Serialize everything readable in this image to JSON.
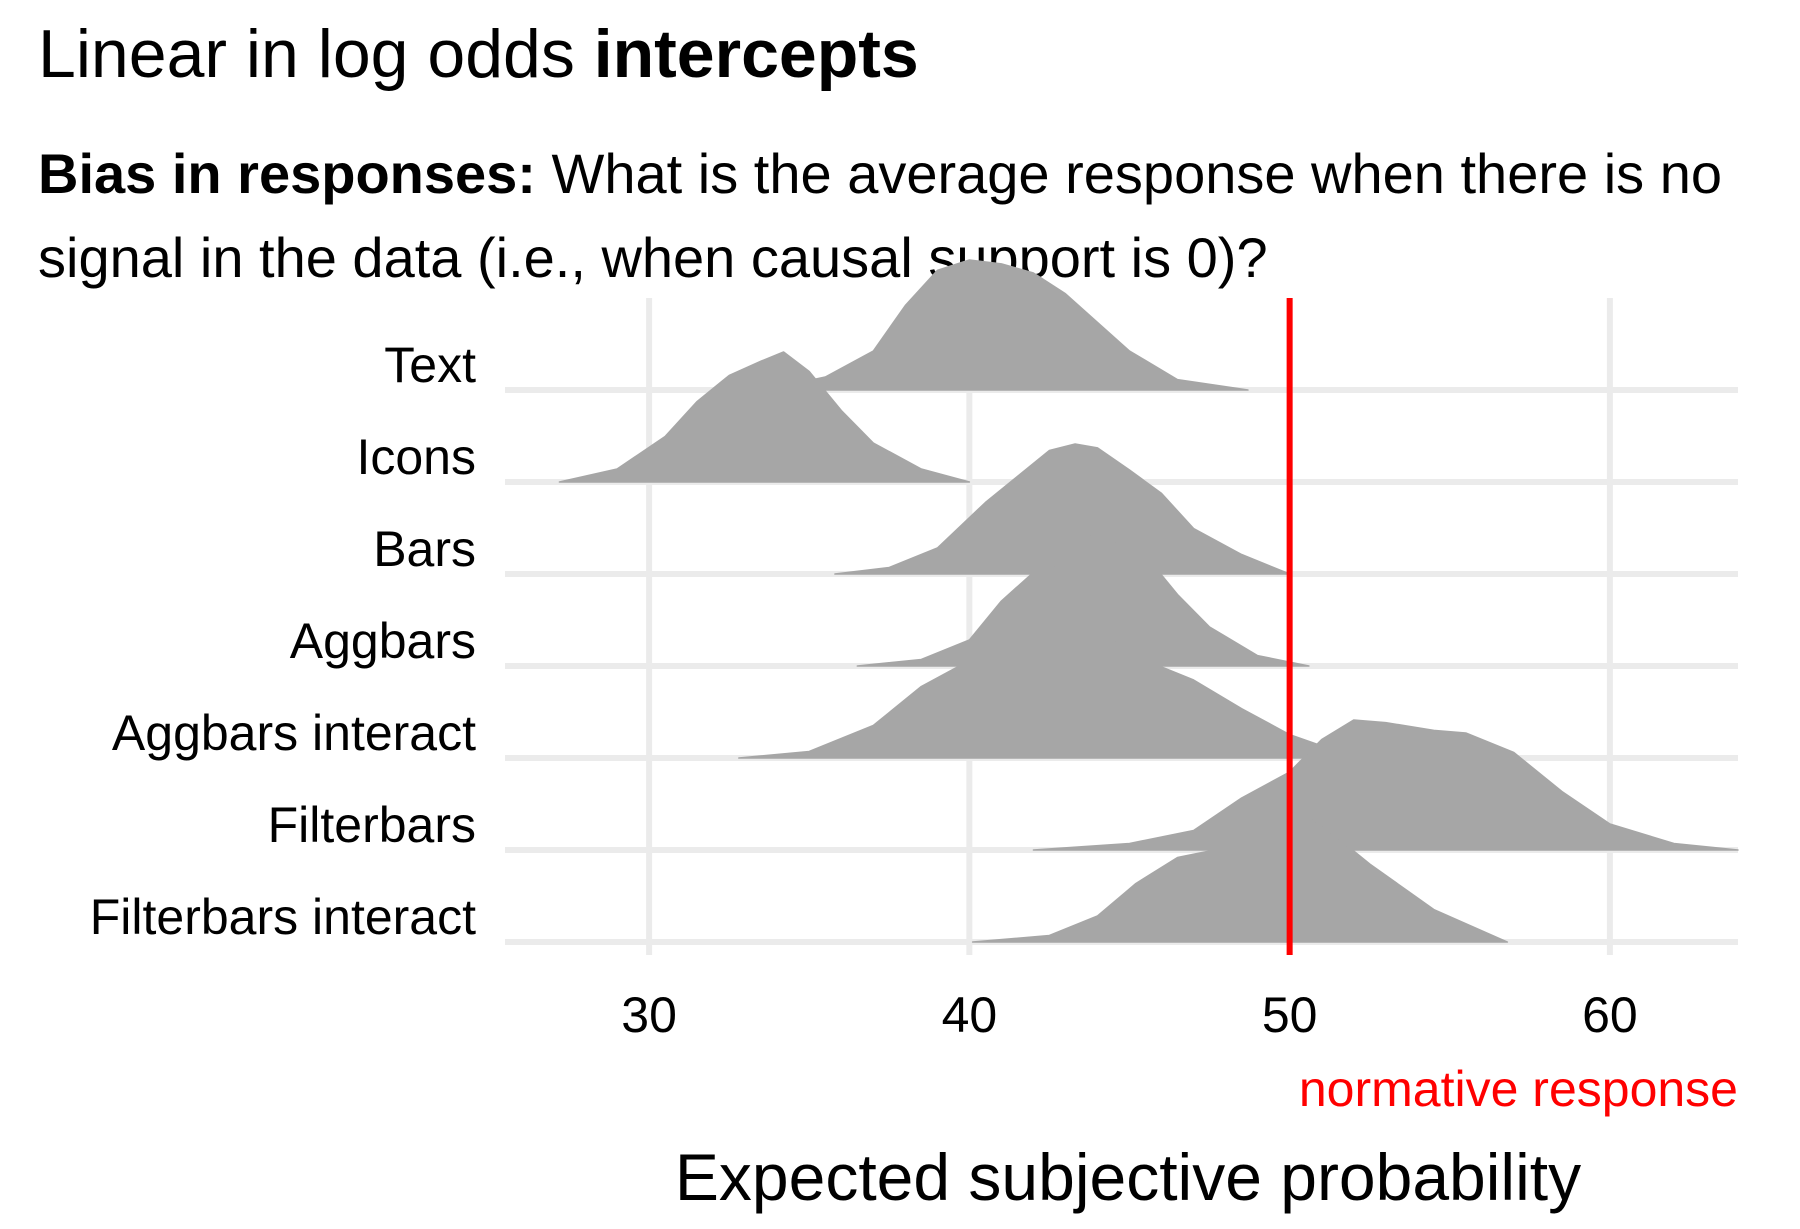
{
  "title": {
    "regular": "Linear in log odds ",
    "bold": "intercepts"
  },
  "subtitle": {
    "bold": "Bias in responses:",
    "regular": " What is the average response when there is no signal in the data (i.e., when causal support is 0)?"
  },
  "chart_data": {
    "type": "ridgeline",
    "xlabel": "Expected subjective probability",
    "xlim": [
      25.5,
      64
    ],
    "x_ticks": [
      30,
      40,
      50,
      60
    ],
    "grid": true,
    "reference_line": {
      "x": 50,
      "label": "normative response",
      "color": "#ff0000"
    },
    "fill_color": "#a6a6a6",
    "grid_color": "#ebebeb",
    "categories": [
      "Text",
      "Icons",
      "Bars",
      "Aggbars",
      "Aggbars interact",
      "Filterbars",
      "Filterbars interact"
    ],
    "series": [
      {
        "name": "Text",
        "x": [
          33.6,
          35.5,
          37,
          38,
          39,
          40,
          41,
          42,
          43,
          44,
          45,
          46.5,
          48.7
        ],
        "density": [
          0,
          0.1,
          0.3,
          0.65,
          0.92,
          1.0,
          0.97,
          0.9,
          0.74,
          0.52,
          0.3,
          0.08,
          0
        ]
      },
      {
        "name": "Icons",
        "x": [
          27.2,
          29,
          30.5,
          31.5,
          32.5,
          33.5,
          34.2,
          35,
          36,
          37,
          38.5,
          40
        ],
        "density": [
          0,
          0.1,
          0.35,
          0.62,
          0.82,
          0.93,
          1.0,
          0.85,
          0.55,
          0.3,
          0.1,
          0
        ]
      },
      {
        "name": "Bars",
        "x": [
          35.8,
          37.5,
          39,
          40.5,
          41.5,
          42.5,
          43.3,
          44,
          45,
          46,
          47,
          48.5,
          50
        ],
        "density": [
          0,
          0.05,
          0.2,
          0.55,
          0.75,
          0.95,
          1.0,
          0.97,
          0.8,
          0.62,
          0.35,
          0.15,
          0
        ]
      },
      {
        "name": "Aggbars",
        "x": [
          36.5,
          38.5,
          40,
          41,
          42,
          43,
          43.8,
          44.5,
          45.5,
          46.5,
          47.5,
          49,
          50.6
        ],
        "density": [
          0,
          0.05,
          0.2,
          0.5,
          0.72,
          0.8,
          1.0,
          0.95,
          0.85,
          0.55,
          0.3,
          0.08,
          0
        ]
      },
      {
        "name": "Aggbars interact",
        "x": [
          32.8,
          35,
          37,
          38.5,
          40,
          41.5,
          42.5,
          43.5,
          44.5,
          45.5,
          47,
          48.5,
          50,
          51.5,
          53.5
        ],
        "density": [
          0,
          0.05,
          0.25,
          0.55,
          0.75,
          0.92,
          1.0,
          1.0,
          0.9,
          0.75,
          0.6,
          0.38,
          0.18,
          0.05,
          0
        ]
      },
      {
        "name": "Filterbars",
        "x": [
          42,
          45,
          47,
          48.5,
          50,
          51,
          52,
          53,
          54.5,
          55.5,
          57,
          58.5,
          60,
          62,
          64
        ],
        "density": [
          0,
          0.05,
          0.15,
          0.4,
          0.6,
          0.85,
          1.0,
          0.98,
          0.92,
          0.9,
          0.75,
          0.45,
          0.2,
          0.05,
          0
        ]
      },
      {
        "name": "Filterbars interact",
        "x": [
          40.1,
          42.5,
          44,
          45.2,
          46.5,
          47.5,
          48.5,
          49.5,
          50.2,
          51,
          52.5,
          54.5,
          56.8
        ],
        "density": [
          0,
          0.05,
          0.2,
          0.45,
          0.65,
          0.7,
          0.7,
          0.85,
          1.0,
          0.9,
          0.6,
          0.25,
          0
        ]
      }
    ]
  }
}
